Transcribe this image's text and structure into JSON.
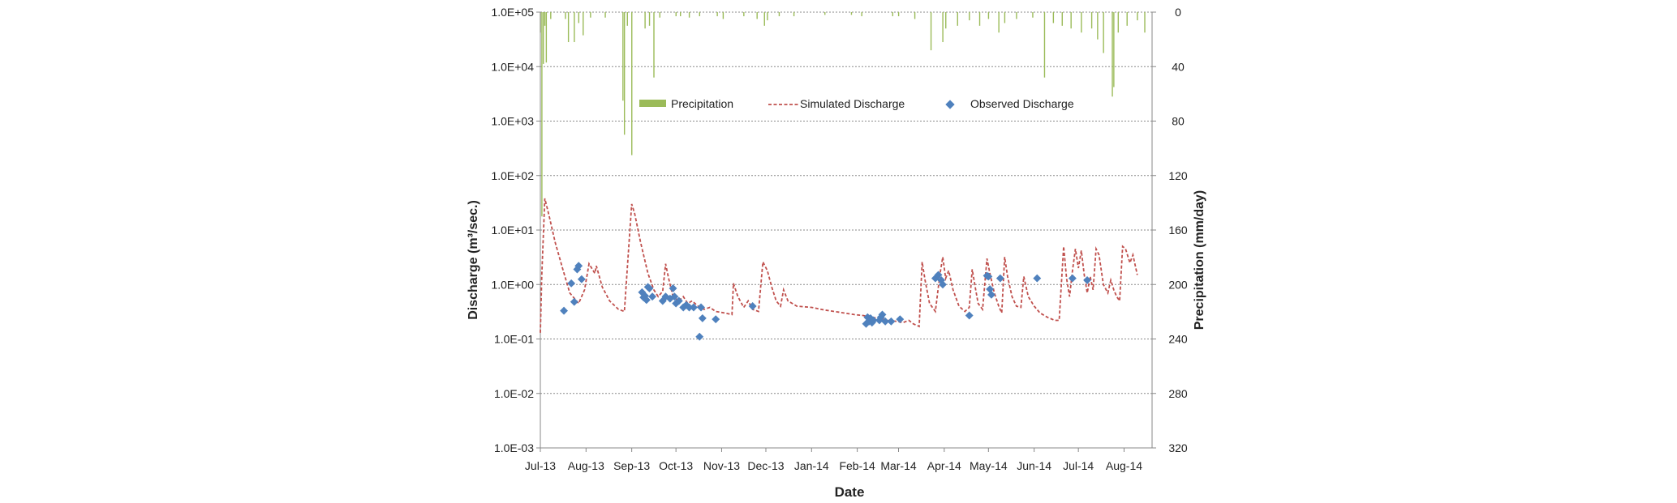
{
  "chart_data": {
    "type": "line",
    "xlabel": "Date",
    "ylabel_left": "Discharge (m³/sec.)",
    "ylabel_right": "Precipitation (mm/day)",
    "x_tick_labels": [
      "Jul-13",
      "Aug-13",
      "Sep-13",
      "Oct-13",
      "Nov-13",
      "Dec-13",
      "Jan-14",
      "Feb-14",
      "Mar-14",
      "Apr-14",
      "May-14",
      "Jun-14",
      "Jul-14",
      "Aug-14"
    ],
    "x_range": [
      "2013-07-01",
      "2014-08-20"
    ],
    "y_left_log_range": [
      0.001,
      100000
    ],
    "y_left_tick_labels": [
      "1.0E+05",
      "1.0E+04",
      "1.0E+03",
      "1.0E+02",
      "1.0E+01",
      "1.0E+00",
      "1.0E-01",
      "1.0E-02",
      "1.0E-03"
    ],
    "y_right_range": [
      0,
      320
    ],
    "y_right_inverted": true,
    "y_right_tick_labels": [
      "0",
      "40",
      "80",
      "120",
      "160",
      "200",
      "240",
      "280",
      "320"
    ],
    "grid": "horizontal dashed",
    "legend_placement": "top-center inside plot",
    "legend": {
      "precipitation": "Precipitation",
      "simulated": "Simulated Discharge",
      "observed": "Observed Discharge"
    },
    "colors": {
      "precipitation": "#9bbb59",
      "simulated": "#c0504d",
      "observed": "#4f81bd"
    },
    "precipitation": [
      {
        "date": "2013-07-01",
        "value": 15
      },
      {
        "date": "2013-07-02",
        "value": 150
      },
      {
        "date": "2013-07-03",
        "value": 38
      },
      {
        "date": "2013-07-04",
        "value": 10
      },
      {
        "date": "2013-07-05",
        "value": 37
      },
      {
        "date": "2013-07-08",
        "value": 5
      },
      {
        "date": "2013-07-18",
        "value": 5
      },
      {
        "date": "2013-07-20",
        "value": 22
      },
      {
        "date": "2013-07-24",
        "value": 22
      },
      {
        "date": "2013-07-27",
        "value": 8
      },
      {
        "date": "2013-07-30",
        "value": 17
      },
      {
        "date": "2013-08-04",
        "value": 4
      },
      {
        "date": "2013-08-14",
        "value": 4
      },
      {
        "date": "2013-08-26",
        "value": 65
      },
      {
        "date": "2013-08-27",
        "value": 90
      },
      {
        "date": "2013-08-29",
        "value": 10
      },
      {
        "date": "2013-09-01",
        "value": 105
      },
      {
        "date": "2013-09-10",
        "value": 12
      },
      {
        "date": "2013-09-13",
        "value": 10
      },
      {
        "date": "2013-09-16",
        "value": 48
      },
      {
        "date": "2013-09-20",
        "value": 4
      },
      {
        "date": "2013-10-01",
        "value": 3
      },
      {
        "date": "2013-10-04",
        "value": 3
      },
      {
        "date": "2013-10-10",
        "value": 4
      },
      {
        "date": "2013-10-17",
        "value": 3
      },
      {
        "date": "2013-10-29",
        "value": 3
      },
      {
        "date": "2013-11-02",
        "value": 5
      },
      {
        "date": "2013-11-16",
        "value": 3
      },
      {
        "date": "2013-11-25",
        "value": 5
      },
      {
        "date": "2013-11-30",
        "value": 10
      },
      {
        "date": "2013-12-02",
        "value": 6
      },
      {
        "date": "2013-12-10",
        "value": 3
      },
      {
        "date": "2013-12-20",
        "value": 3
      },
      {
        "date": "2014-01-10",
        "value": 2
      },
      {
        "date": "2014-01-28",
        "value": 2
      },
      {
        "date": "2014-02-04",
        "value": 3
      },
      {
        "date": "2014-02-25",
        "value": 3
      },
      {
        "date": "2014-03-01",
        "value": 3
      },
      {
        "date": "2014-03-12",
        "value": 5
      },
      {
        "date": "2014-03-23",
        "value": 28
      },
      {
        "date": "2014-03-31",
        "value": 22
      },
      {
        "date": "2014-04-02",
        "value": 12
      },
      {
        "date": "2014-04-10",
        "value": 10
      },
      {
        "date": "2014-04-18",
        "value": 6
      },
      {
        "date": "2014-04-25",
        "value": 10
      },
      {
        "date": "2014-05-01",
        "value": 5
      },
      {
        "date": "2014-05-08",
        "value": 15
      },
      {
        "date": "2014-05-12",
        "value": 8
      },
      {
        "date": "2014-05-20",
        "value": 5
      },
      {
        "date": "2014-05-31",
        "value": 4
      },
      {
        "date": "2014-06-08",
        "value": 48
      },
      {
        "date": "2014-06-14",
        "value": 8
      },
      {
        "date": "2014-06-20",
        "value": 10
      },
      {
        "date": "2014-06-26",
        "value": 12
      },
      {
        "date": "2014-07-03",
        "value": 15
      },
      {
        "date": "2014-07-10",
        "value": 12
      },
      {
        "date": "2014-07-14",
        "value": 20
      },
      {
        "date": "2014-07-18",
        "value": 30
      },
      {
        "date": "2014-07-24",
        "value": 62
      },
      {
        "date": "2014-07-25",
        "value": 55
      },
      {
        "date": "2014-07-28",
        "value": 15
      },
      {
        "date": "2014-08-03",
        "value": 10
      },
      {
        "date": "2014-08-10",
        "value": 6
      },
      {
        "date": "2014-08-15",
        "value": 15
      }
    ],
    "simulated_discharge": [
      {
        "date": "2013-07-01",
        "value": 0.13
      },
      {
        "date": "2013-07-02",
        "value": 1.5
      },
      {
        "date": "2013-07-04",
        "value": 38
      },
      {
        "date": "2013-07-07",
        "value": 18
      },
      {
        "date": "2013-07-11",
        "value": 6
      },
      {
        "date": "2013-07-16",
        "value": 2
      },
      {
        "date": "2013-07-21",
        "value": 0.7
      },
      {
        "date": "2013-07-27",
        "value": 0.45
      },
      {
        "date": "2013-07-31",
        "value": 0.8
      },
      {
        "date": "2013-08-03",
        "value": 2.4
      },
      {
        "date": "2013-08-07",
        "value": 1.6
      },
      {
        "date": "2013-08-08",
        "value": 2.2
      },
      {
        "date": "2013-08-12",
        "value": 0.9
      },
      {
        "date": "2013-08-17",
        "value": 0.5
      },
      {
        "date": "2013-08-23",
        "value": 0.35
      },
      {
        "date": "2013-08-27",
        "value": 0.32
      },
      {
        "date": "2013-08-29",
        "value": 2
      },
      {
        "date": "2013-09-01",
        "value": 30
      },
      {
        "date": "2013-09-03",
        "value": 20
      },
      {
        "date": "2013-09-07",
        "value": 6
      },
      {
        "date": "2013-09-12",
        "value": 1.6
      },
      {
        "date": "2013-09-16",
        "value": 0.8
      },
      {
        "date": "2013-09-19",
        "value": 0.6
      },
      {
        "date": "2013-09-22",
        "value": 0.75
      },
      {
        "date": "2013-09-24",
        "value": 2.4
      },
      {
        "date": "2013-09-26",
        "value": 1.3
      },
      {
        "date": "2013-09-29",
        "value": 0.6
      },
      {
        "date": "2013-10-03",
        "value": 0.5
      },
      {
        "date": "2013-10-06",
        "value": 0.6
      },
      {
        "date": "2013-10-09",
        "value": 0.45
      },
      {
        "date": "2013-10-12",
        "value": 0.5
      },
      {
        "date": "2013-10-16",
        "value": 0.4
      },
      {
        "date": "2013-10-20",
        "value": 0.35
      },
      {
        "date": "2013-10-24",
        "value": 0.38
      },
      {
        "date": "2013-10-28",
        "value": 0.32
      },
      {
        "date": "2013-11-03",
        "value": 0.3
      },
      {
        "date": "2013-11-08",
        "value": 0.28
      },
      {
        "date": "2013-11-09",
        "value": 1.05
      },
      {
        "date": "2013-11-12",
        "value": 0.6
      },
      {
        "date": "2013-11-16",
        "value": 0.38
      },
      {
        "date": "2013-11-19",
        "value": 0.5
      },
      {
        "date": "2013-11-22",
        "value": 0.35
      },
      {
        "date": "2013-11-26",
        "value": 0.32
      },
      {
        "date": "2013-11-29",
        "value": 2.6
      },
      {
        "date": "2013-12-02",
        "value": 1.8
      },
      {
        "date": "2013-12-05",
        "value": 0.9
      },
      {
        "date": "2013-12-08",
        "value": 0.5
      },
      {
        "date": "2013-12-11",
        "value": 0.4
      },
      {
        "date": "2013-12-13",
        "value": 0.8
      },
      {
        "date": "2013-12-16",
        "value": 0.5
      },
      {
        "date": "2013-12-22",
        "value": 0.4
      },
      {
        "date": "2014-01-01",
        "value": 0.38
      },
      {
        "date": "2014-01-10",
        "value": 0.34
      },
      {
        "date": "2014-01-20",
        "value": 0.31
      },
      {
        "date": "2014-01-30",
        "value": 0.28
      },
      {
        "date": "2014-02-05",
        "value": 0.27
      },
      {
        "date": "2014-02-10",
        "value": 0.25
      },
      {
        "date": "2014-02-16",
        "value": 0.24
      },
      {
        "date": "2014-02-22",
        "value": 0.22
      },
      {
        "date": "2014-02-28",
        "value": 0.21
      },
      {
        "date": "2014-03-04",
        "value": 0.2
      },
      {
        "date": "2014-03-08",
        "value": 0.22
      },
      {
        "date": "2014-03-11",
        "value": 0.19
      },
      {
        "date": "2014-03-15",
        "value": 0.17
      },
      {
        "date": "2014-03-17",
        "value": 2.6
      },
      {
        "date": "2014-03-19",
        "value": 1.2
      },
      {
        "date": "2014-03-22",
        "value": 0.45
      },
      {
        "date": "2014-03-26",
        "value": 0.32
      },
      {
        "date": "2014-03-29",
        "value": 1.5
      },
      {
        "date": "2014-03-31",
        "value": 3.2
      },
      {
        "date": "2014-04-02",
        "value": 1.3
      },
      {
        "date": "2014-04-04",
        "value": 1.8
      },
      {
        "date": "2014-04-07",
        "value": 0.8
      },
      {
        "date": "2014-04-11",
        "value": 0.4
      },
      {
        "date": "2014-04-15",
        "value": 0.32
      },
      {
        "date": "2014-04-18",
        "value": 0.38
      },
      {
        "date": "2014-04-20",
        "value": 1.9
      },
      {
        "date": "2014-04-22",
        "value": 0.9
      },
      {
        "date": "2014-04-24",
        "value": 0.45
      },
      {
        "date": "2014-04-27",
        "value": 0.35
      },
      {
        "date": "2014-04-30",
        "value": 3
      },
      {
        "date": "2014-05-02",
        "value": 1.6
      },
      {
        "date": "2014-05-05",
        "value": 0.7
      },
      {
        "date": "2014-05-08",
        "value": 0.4
      },
      {
        "date": "2014-05-10",
        "value": 0.3
      },
      {
        "date": "2014-05-12",
        "value": 3.2
      },
      {
        "date": "2014-05-14",
        "value": 1.4
      },
      {
        "date": "2014-05-17",
        "value": 0.6
      },
      {
        "date": "2014-05-20",
        "value": 0.4
      },
      {
        "date": "2014-05-23",
        "value": 0.38
      },
      {
        "date": "2014-05-25",
        "value": 1.4
      },
      {
        "date": "2014-05-28",
        "value": 0.6
      },
      {
        "date": "2014-06-01",
        "value": 0.4
      },
      {
        "date": "2014-06-05",
        "value": 0.3
      },
      {
        "date": "2014-06-10",
        "value": 0.25
      },
      {
        "date": "2014-06-15",
        "value": 0.22
      },
      {
        "date": "2014-06-18",
        "value": 0.22
      },
      {
        "date": "2014-06-21",
        "value": 5
      },
      {
        "date": "2014-06-23",
        "value": 1.3
      },
      {
        "date": "2014-06-25",
        "value": 0.6
      },
      {
        "date": "2014-06-27",
        "value": 1.8
      },
      {
        "date": "2014-06-29",
        "value": 4.5
      },
      {
        "date": "2014-07-01",
        "value": 2
      },
      {
        "date": "2014-07-03",
        "value": 4.2
      },
      {
        "date": "2014-07-05",
        "value": 1.5
      },
      {
        "date": "2014-07-07",
        "value": 0.7
      },
      {
        "date": "2014-07-09",
        "value": 1.4
      },
      {
        "date": "2014-07-11",
        "value": 0.8
      },
      {
        "date": "2014-07-13",
        "value": 4.5
      },
      {
        "date": "2014-07-15",
        "value": 3.5
      },
      {
        "date": "2014-07-18",
        "value": 1
      },
      {
        "date": "2014-07-21",
        "value": 0.7
      },
      {
        "date": "2014-07-23",
        "value": 1.2
      },
      {
        "date": "2014-07-25",
        "value": 0.8
      },
      {
        "date": "2014-07-27",
        "value": 0.6
      },
      {
        "date": "2014-07-29",
        "value": 0.5
      },
      {
        "date": "2014-07-31",
        "value": 5
      },
      {
        "date": "2014-08-02",
        "value": 4.5
      },
      {
        "date": "2014-08-05",
        "value": 2.5
      },
      {
        "date": "2014-08-07",
        "value": 3.5
      },
      {
        "date": "2014-08-10",
        "value": 1.5
      }
    ],
    "observed_discharge": [
      {
        "date": "2013-07-17",
        "value": 0.33
      },
      {
        "date": "2013-07-22",
        "value": 1.05
      },
      {
        "date": "2013-07-24",
        "value": 0.48
      },
      {
        "date": "2013-07-26",
        "value": 1.9
      },
      {
        "date": "2013-07-27",
        "value": 2.2
      },
      {
        "date": "2013-07-29",
        "value": 1.25
      },
      {
        "date": "2013-09-08",
        "value": 0.72
      },
      {
        "date": "2013-09-09",
        "value": 0.58
      },
      {
        "date": "2013-09-10",
        "value": 0.62
      },
      {
        "date": "2013-09-11",
        "value": 0.52
      },
      {
        "date": "2013-09-12",
        "value": 0.9
      },
      {
        "date": "2013-09-13",
        "value": 0.85
      },
      {
        "date": "2013-09-15",
        "value": 0.6
      },
      {
        "date": "2013-09-22",
        "value": 0.5
      },
      {
        "date": "2013-09-24",
        "value": 0.6
      },
      {
        "date": "2013-09-27",
        "value": 0.55
      },
      {
        "date": "2013-09-29",
        "value": 0.85
      },
      {
        "date": "2013-09-30",
        "value": 0.6
      },
      {
        "date": "2013-10-01",
        "value": 0.45
      },
      {
        "date": "2013-10-03",
        "value": 0.5
      },
      {
        "date": "2013-10-06",
        "value": 0.38
      },
      {
        "date": "2013-10-08",
        "value": 0.42
      },
      {
        "date": "2013-10-10",
        "value": 0.38
      },
      {
        "date": "2013-10-13",
        "value": 0.38
      },
      {
        "date": "2013-10-17",
        "value": 0.11
      },
      {
        "date": "2013-10-18",
        "value": 0.38
      },
      {
        "date": "2013-10-19",
        "value": 0.24
      },
      {
        "date": "2013-10-28",
        "value": 0.23
      },
      {
        "date": "2013-11-22",
        "value": 0.4
      },
      {
        "date": "2014-02-07",
        "value": 0.19
      },
      {
        "date": "2014-02-08",
        "value": 0.25
      },
      {
        "date": "2014-02-09",
        "value": 0.21
      },
      {
        "date": "2014-02-10",
        "value": 0.24
      },
      {
        "date": "2014-02-11",
        "value": 0.2
      },
      {
        "date": "2014-02-12",
        "value": 0.22
      },
      {
        "date": "2014-02-16",
        "value": 0.22
      },
      {
        "date": "2014-02-17",
        "value": 0.25
      },
      {
        "date": "2014-02-18",
        "value": 0.28
      },
      {
        "date": "2014-02-20",
        "value": 0.21
      },
      {
        "date": "2014-02-24",
        "value": 0.21
      },
      {
        "date": "2014-03-02",
        "value": 0.23
      },
      {
        "date": "2014-03-26",
        "value": 1.3
      },
      {
        "date": "2014-03-28",
        "value": 1.5
      },
      {
        "date": "2014-03-30",
        "value": 1.2
      },
      {
        "date": "2014-03-31",
        "value": 1.0
      },
      {
        "date": "2014-04-18",
        "value": 0.27
      },
      {
        "date": "2014-04-30",
        "value": 1.45
      },
      {
        "date": "2014-05-01",
        "value": 1.4
      },
      {
        "date": "2014-05-02",
        "value": 0.82
      },
      {
        "date": "2014-05-03",
        "value": 0.65
      },
      {
        "date": "2014-05-09",
        "value": 1.3
      },
      {
        "date": "2014-06-03",
        "value": 1.3
      },
      {
        "date": "2014-06-27",
        "value": 1.3
      },
      {
        "date": "2014-07-07",
        "value": 1.2
      }
    ]
  }
}
